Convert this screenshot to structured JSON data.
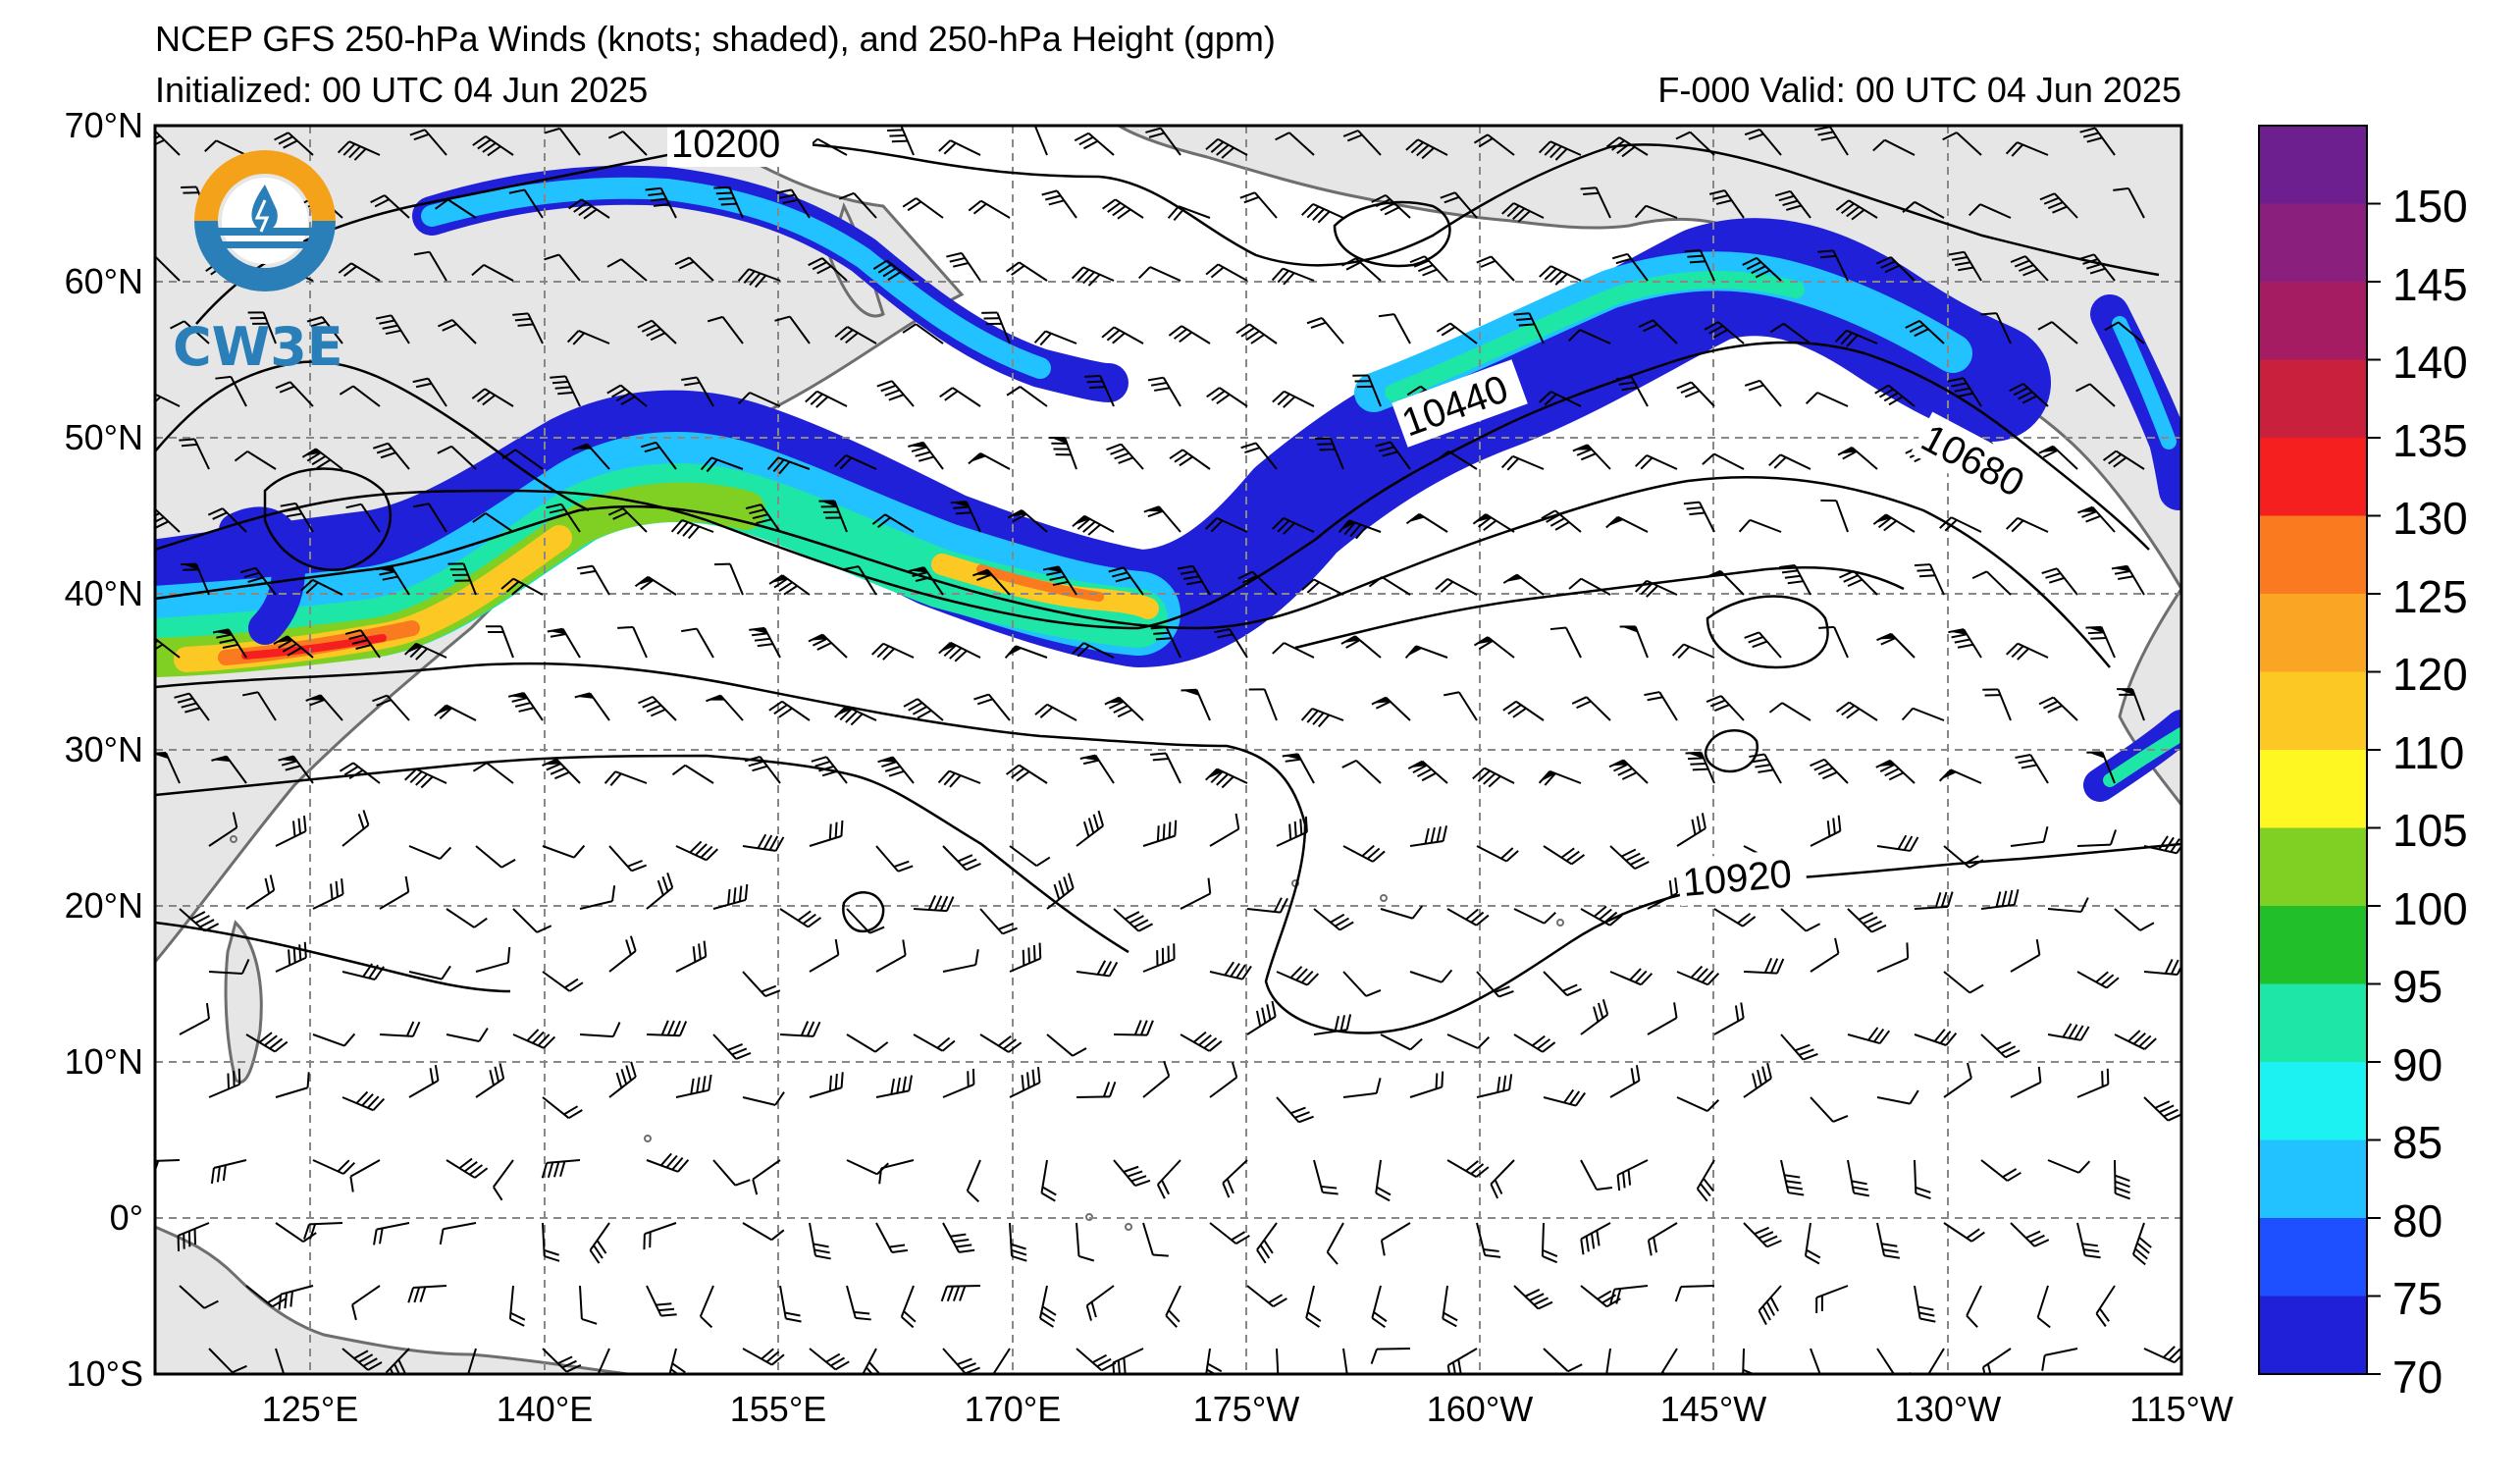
{
  "title": {
    "line1": "NCEP GFS 250-hPa Winds (knots; shaded), and 250-hPa Height (gpm)",
    "line2_left": "Initialized: 00 UTC 04 Jun 2025",
    "line2_right": "F-000  Valid: 00 UTC 04 Jun 2025"
  },
  "logo": {
    "text": "CW3E"
  },
  "map": {
    "lon_ticks": [
      "125°E",
      "140°E",
      "155°E",
      "170°E",
      "175°W",
      "160°W",
      "145°W",
      "130°W",
      "115°W"
    ],
    "lat_ticks": [
      "70°N",
      "60°N",
      "50°N",
      "40°N",
      "30°N",
      "20°N",
      "10°N",
      "0°",
      "10°S"
    ],
    "land_color": "#e6e6e6",
    "coast_color": "#6e6e6e",
    "grid_color": "#888888"
  },
  "height_contours": {
    "units": "gpm",
    "labels": [
      "10200",
      "10440",
      "10680",
      "10920"
    ]
  },
  "colorbar": {
    "ticks": [
      "150",
      "145",
      "140",
      "135",
      "130",
      "125",
      "120",
      "110",
      "105",
      "100",
      "95",
      "90",
      "85",
      "80",
      "75",
      "70"
    ],
    "colors_top_to_bottom": [
      "#6e1f8f",
      "#8a1f7e",
      "#a51c63",
      "#c8203d",
      "#f51f1f",
      "#fa7a20",
      "#fba524",
      "#fcc823",
      "#fef722",
      "#80d024",
      "#21c02b",
      "#1de6a6",
      "#1df2f2",
      "#22c1ff",
      "#1e50ff",
      "#2020d8"
    ]
  },
  "jet_core_colors": {
    "kt70": "#2020d8",
    "kt80": "#22c1ff",
    "kt90": "#1de6a6",
    "kt100": "#80d024",
    "kt110": "#fcc823",
    "kt125": "#fa7a20",
    "kt130": "#f51f1f"
  }
}
